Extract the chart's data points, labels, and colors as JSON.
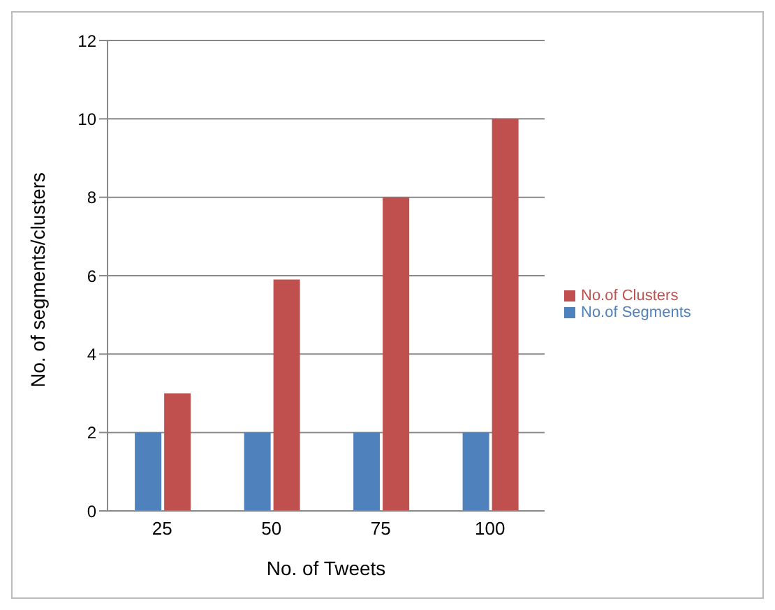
{
  "chart_data": {
    "type": "bar",
    "xlabel": "No. of Tweets",
    "ylabel": "No. of segments/clusters",
    "categories": [
      "25",
      "50",
      "75",
      "100"
    ],
    "series": [
      {
        "name": "No.of Segments",
        "color": "#4f81bd",
        "values": [
          2,
          2,
          2,
          2
        ]
      },
      {
        "name": "No.of Clusters",
        "color": "#c0504d",
        "values": [
          3,
          5.9,
          8,
          10
        ]
      }
    ],
    "ylim": [
      0,
      12
    ],
    "yticks": [
      0,
      2,
      4,
      6,
      8,
      10,
      12
    ],
    "grid": "y",
    "legend": "right"
  }
}
